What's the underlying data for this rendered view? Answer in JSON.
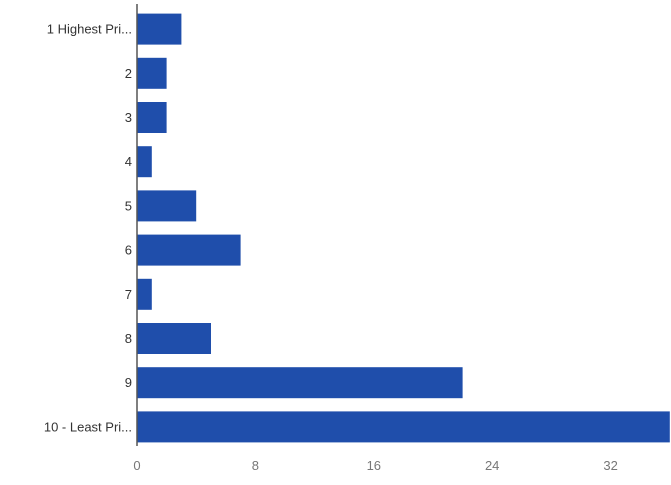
{
  "chart_data": {
    "type": "bar",
    "orientation": "horizontal",
    "categories": [
      "1 Highest Pri...",
      "2",
      "3",
      "4",
      "5",
      "6",
      "7",
      "8",
      "9",
      "10 - Least Pri..."
    ],
    "values": [
      3,
      2,
      2,
      1,
      4,
      7,
      1,
      5,
      22,
      36
    ],
    "title": "",
    "xlabel": "",
    "ylabel": "",
    "xlim": [
      0,
      36
    ],
    "xticks": [
      "0",
      "8",
      "16",
      "24",
      "32"
    ],
    "grid": false,
    "legend": "none",
    "bar_color": "#1f4eab"
  }
}
